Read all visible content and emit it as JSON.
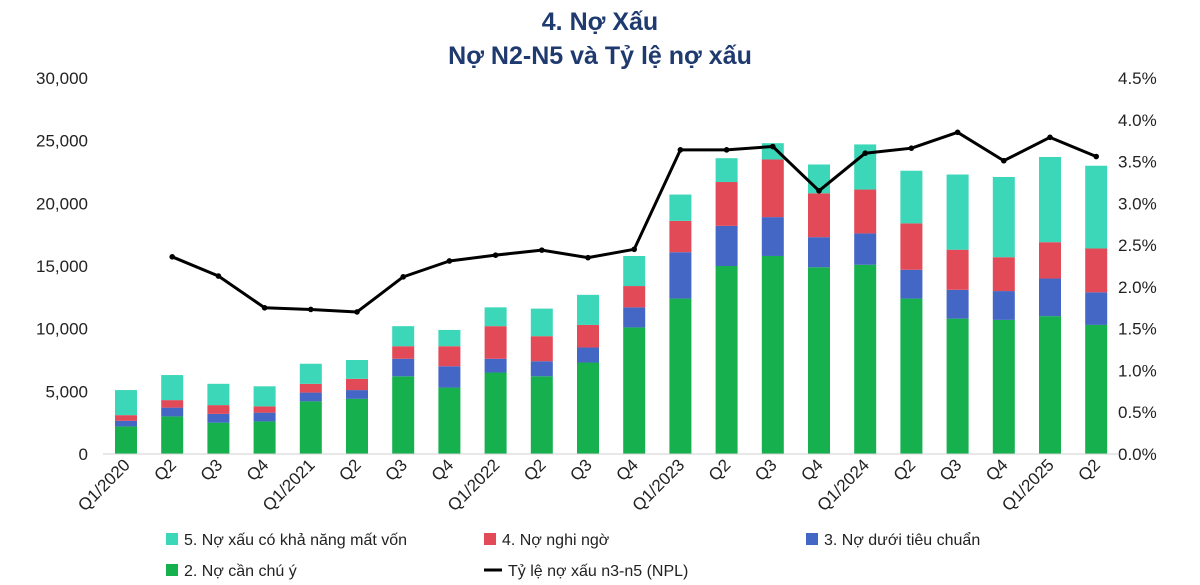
{
  "chart_data": {
    "type": "bar",
    "title": "4. Nợ Xấu",
    "subtitle": "Nợ N2-N5 và Tỷ lệ nợ xấu",
    "categories": [
      "Q1/2020",
      "Q2",
      "Q3",
      "Q4",
      "Q1/2021",
      "Q2",
      "Q3",
      "Q4",
      "Q1/2022",
      "Q2",
      "Q3",
      "Q4",
      "Q1/2023",
      "Q2",
      "Q3",
      "Q4",
      "Q1/2024",
      "Q2",
      "Q3",
      "Q4",
      "Q1/2025",
      "Q2"
    ],
    "stacked": true,
    "ylim": [
      0,
      30000
    ],
    "y_ticks": [
      "0",
      "5,000",
      "10,000",
      "15,000",
      "20,000",
      "25,000",
      "30,000"
    ],
    "y2lim": [
      0,
      4.5
    ],
    "y2_ticks": [
      "0.0%",
      "0.5%",
      "1.0%",
      "1.5%",
      "2.0%",
      "2.5%",
      "3.0%",
      "3.5%",
      "4.0%",
      "4.5%"
    ],
    "grid": false,
    "legend_position": "bottom",
    "series": [
      {
        "name": "2. Nợ cần chú ý",
        "color": "#16b04f",
        "kind": "bar",
        "values": [
          2200,
          3000,
          2500,
          2600,
          4200,
          4400,
          6200,
          5300,
          6500,
          6200,
          7300,
          10100,
          12400,
          15000,
          15800,
          14900,
          15100,
          12400,
          10800,
          10700,
          11000,
          10300
        ]
      },
      {
        "name": "3. Nợ dưới tiêu chuẩn",
        "color": "#4466c4",
        "kind": "bar",
        "values": [
          450,
          700,
          700,
          700,
          700,
          700,
          1400,
          1700,
          1100,
          1200,
          1200,
          1600,
          3700,
          3200,
          3100,
          2400,
          2500,
          2300,
          2300,
          2300,
          3000,
          2600
        ]
      },
      {
        "name": "4. Nợ nghi ngờ",
        "color": "#e24a57",
        "kind": "bar",
        "values": [
          450,
          600,
          700,
          500,
          700,
          900,
          1000,
          1600,
          2600,
          2000,
          1800,
          1700,
          2500,
          3500,
          4600,
          3500,
          3500,
          3700,
          3200,
          2700,
          2900,
          3500
        ]
      },
      {
        "name": "5. Nợ xấu có khả năng mất vốn",
        "color": "#3cd6b8",
        "kind": "bar",
        "values": [
          2000,
          2000,
          1700,
          1600,
          1600,
          1500,
          1600,
          1300,
          1500,
          2200,
          2400,
          2400,
          2100,
          1900,
          1300,
          2300,
          3600,
          4200,
          6000,
          6400,
          6800,
          6600
        ]
      },
      {
        "name": "Tỷ lệ nợ xấu n3-n5 (NPL)",
        "color": "#000000",
        "kind": "line",
        "axis": "y2",
        "values": [
          null,
          2.36,
          2.13,
          1.75,
          1.73,
          1.7,
          2.12,
          2.31,
          2.38,
          2.44,
          2.35,
          2.45,
          3.64,
          3.64,
          3.68,
          3.15,
          3.6,
          3.66,
          3.85,
          3.51,
          3.79,
          3.56
        ]
      }
    ],
    "legend": [
      {
        "label": "5. Nợ xấu có khả năng mất vốn",
        "color": "#3cd6b8",
        "kind": "bar"
      },
      {
        "label": "4. Nợ nghi ngờ",
        "color": "#e24a57",
        "kind": "bar"
      },
      {
        "label": "3. Nợ dưới tiêu chuẩn",
        "color": "#4466c4",
        "kind": "bar"
      },
      {
        "label": "2. Nợ cần chú ý",
        "color": "#16b04f",
        "kind": "bar"
      },
      {
        "label": "Tỷ lệ nợ xấu n3-n5 (NPL)",
        "color": "#000000",
        "kind": "line"
      }
    ],
    "title_color": "#1f3a6e"
  }
}
